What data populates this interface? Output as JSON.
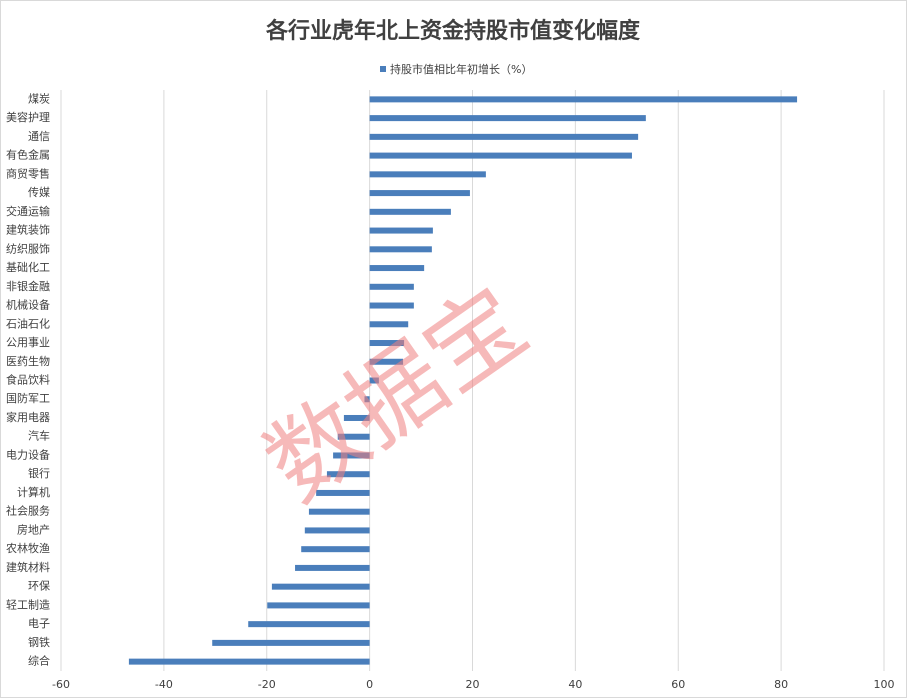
{
  "chart_data": {
    "type": "bar",
    "orientation": "horizontal",
    "title": "各行业虎年北上资金持股市值变化幅度",
    "watermark": "数据宝",
    "categories": [
      "煤炭",
      "美容护理",
      "通信",
      "有色金属",
      "商贸零售",
      "传媒",
      "交通运输",
      "建筑装饰",
      "纺织服饰",
      "基础化工",
      "非银金融",
      "机械设备",
      "石油石化",
      "公用事业",
      "医药生物",
      "食品饮料",
      "国防军工",
      "家用电器",
      "汽车",
      "电力设备",
      "银行",
      "计算机",
      "社会服务",
      "房地产",
      "农林牧渔",
      "建筑材料",
      "环保",
      "轻工制造",
      "电子",
      "钢铁",
      "综合"
    ],
    "series": [
      {
        "name": "持股市值相比年初增长（%）",
        "color": "#4a7ebb",
        "values": [
          83.1,
          53.7,
          52.2,
          51.0,
          22.6,
          19.5,
          15.8,
          12.3,
          12.1,
          10.6,
          8.6,
          8.6,
          7.5,
          6.7,
          6.5,
          1.8,
          -1.0,
          -5.0,
          -6.2,
          -7.1,
          -8.3,
          -10.4,
          -11.8,
          -12.6,
          -13.3,
          -14.5,
          -19.0,
          -19.9,
          -23.6,
          -30.6,
          -46.8
        ]
      }
    ],
    "xlim": [
      -60,
      100
    ],
    "xticks": [
      -60,
      -40,
      -20,
      0,
      20,
      40,
      60,
      80,
      100
    ],
    "grid": true,
    "legend": "top"
  }
}
